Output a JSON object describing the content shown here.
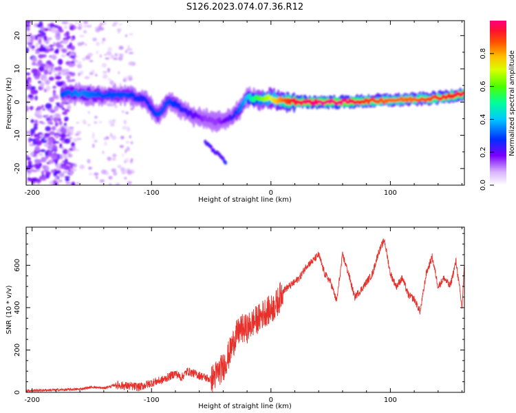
{
  "figure_title": "S126.2023.074.07.36.R12",
  "colors": {
    "snr_line": "#e8302a",
    "axes": "#000000",
    "spectrum_background": "#ffffff"
  },
  "chart_data": [
    {
      "type": "heatmap",
      "title": "S126.2023.074.07.36.R12",
      "xlabel": "Height of straight line (km)",
      "ylabel": "Frequency (Hz)",
      "xlim": [
        -205,
        162
      ],
      "ylim": [
        -25,
        24.5
      ],
      "xticks": [
        -200,
        -100,
        0,
        100
      ],
      "yticks": [
        -20,
        -10,
        0,
        10,
        20
      ],
      "colorbar": {
        "label": "Normalized spectral amplitude",
        "range": [
          0,
          1
        ],
        "ticks": [
          0.0,
          0.2,
          0.4,
          0.6,
          0.8
        ],
        "colormap": "white-purple-blue-cyan-green-yellow-orange-red-magenta"
      },
      "ridge_center_hz": {
        "x": [
          -175,
          -160,
          -140,
          -120,
          -105,
          -95,
          -85,
          -75,
          -65,
          -55,
          -45,
          -35,
          -28,
          -20,
          -10,
          0,
          10,
          20,
          40,
          60,
          80,
          100,
          120,
          140,
          162
        ],
        "y": [
          2.5,
          2.5,
          2.0,
          2.2,
          0.5,
          -4.0,
          0.5,
          -2.0,
          -4.0,
          -5.0,
          -6.0,
          -5.0,
          -3.0,
          1.5,
          0.8,
          1.0,
          0.2,
          0.0,
          0.0,
          0.0,
          0.3,
          0.6,
          0.8,
          1.3,
          2.5
        ]
      },
      "ridge_peak_amplitude": {
        "x": [
          -175,
          -160,
          -140,
          -120,
          -105,
          -95,
          -85,
          -75,
          -65,
          -55,
          -45,
          -35,
          -28,
          -20,
          -10,
          0,
          10,
          20,
          40,
          60,
          80,
          100,
          120,
          140,
          162
        ],
        "y": [
          0.3,
          0.35,
          0.3,
          0.3,
          0.25,
          0.3,
          0.3,
          0.25,
          0.2,
          0.15,
          0.15,
          0.2,
          0.3,
          0.4,
          0.6,
          0.7,
          0.85,
          0.95,
          1.0,
          1.0,
          0.9,
          0.85,
          0.85,
          0.9,
          0.95
        ]
      },
      "side_branch_hz": {
        "x": [
          -55,
          -48,
          -42,
          -38
        ],
        "y": [
          -12.0,
          -14.5,
          -16.5,
          -18.0
        ]
      }
    },
    {
      "type": "line",
      "xlabel": "Height of straight line (km)",
      "ylabel": "SNR (10 * v/v)",
      "xlim": [
        -205,
        162
      ],
      "ylim": [
        0,
        780
      ],
      "xticks": [
        -200,
        -100,
        0,
        100
      ],
      "yticks": [
        0,
        200,
        400,
        600
      ],
      "series": [
        {
          "x": [
            -205,
            -190,
            -175,
            -160,
            -150,
            -140,
            -130,
            -120,
            -110,
            -100,
            -90,
            -80,
            -75,
            -70,
            -60,
            -50,
            -45,
            -40,
            -35,
            -30,
            -25,
            -20,
            -15,
            -10,
            -5,
            0,
            5,
            10,
            15,
            20,
            25,
            30,
            35,
            40,
            45,
            50,
            55,
            60,
            65,
            70,
            75,
            80,
            85,
            90,
            95,
            100,
            105,
            110,
            115,
            120,
            125,
            130,
            135,
            140,
            145,
            150,
            155,
            160,
            162
          ],
          "y": [
            8,
            10,
            12,
            15,
            25,
            20,
            35,
            30,
            25,
            45,
            60,
            90,
            70,
            100,
            80,
            60,
            90,
            120,
            180,
            260,
            300,
            300,
            330,
            350,
            380,
            390,
            420,
            480,
            500,
            520,
            550,
            600,
            620,
            650,
            560,
            520,
            430,
            650,
            560,
            450,
            480,
            520,
            560,
            660,
            720,
            560,
            500,
            540,
            460,
            440,
            380,
            560,
            640,
            500,
            540,
            500,
            620,
            400,
            600
          ]
        }
      ]
    }
  ]
}
